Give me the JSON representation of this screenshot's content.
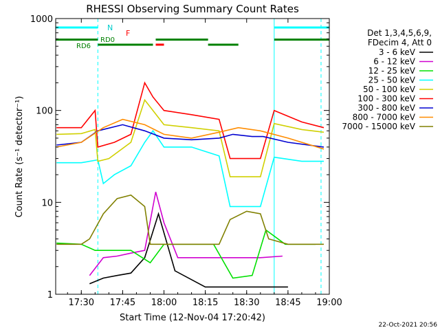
{
  "chart_data": {
    "type": "line",
    "title": "RHESSI Observing Summary Count Rates",
    "xlabel": "Start Time (12-Nov-04 17:20:42)",
    "ylabel": "Count Rate (s⁻¹ detector⁻¹)",
    "y_scale": "log",
    "ylim": [
      1,
      1000
    ],
    "xlim": [
      "17:20:42",
      "19:00:00"
    ],
    "x_ticks": [
      "17:30",
      "17:45",
      "18:00",
      "18:15",
      "18:30",
      "18:45",
      "19:00"
    ],
    "y_ticks": [
      "1",
      "10",
      "100",
      "1000"
    ],
    "legend_header": [
      "Det 1,3,4,5,6,9,",
      "FDecim 4, Att 0"
    ],
    "legend_position": "right",
    "timestamp": "22-Oct-2021 20:56",
    "flag_labels": {
      "night": "N",
      "flare": "F",
      "rd0": "RD0",
      "rd6": "RD6"
    },
    "series": [
      {
        "name": "3 - 6 keV",
        "color": "#000000",
        "x": [
          "17:33",
          "17:38",
          "17:43",
          "17:48",
          "17:53",
          "17:58",
          "18:04",
          "18:15",
          "18:25",
          "18:35",
          "18:45"
        ],
        "y": [
          1.3,
          1.5,
          1.6,
          1.7,
          2.5,
          7.5,
          1.8,
          1.2,
          1.2,
          1.2,
          1.2
        ]
      },
      {
        "name": "6 - 12 keV",
        "color": "#d000d0",
        "x": [
          "17:33",
          "17:38",
          "17:43",
          "17:48",
          "17:53",
          "17:57",
          "18:00",
          "18:05",
          "18:15",
          "18:25",
          "18:35",
          "18:43"
        ],
        "y": [
          1.6,
          2.5,
          2.6,
          2.8,
          3.0,
          13,
          6,
          2.5,
          2.5,
          2.5,
          2.5,
          2.6
        ]
      },
      {
        "name": "12 - 25 keV",
        "color": "#00e000",
        "x": [
          "17:21",
          "17:30",
          "17:35",
          "17:40",
          "17:48",
          "17:55",
          "18:00",
          "18:10",
          "18:18",
          "18:25",
          "18:32",
          "18:37",
          "18:44",
          "18:55"
        ],
        "y": [
          3.6,
          3.5,
          3.0,
          3.0,
          3.0,
          2.2,
          3.5,
          3.5,
          3.5,
          1.5,
          1.6,
          5.0,
          3.5,
          3.5
        ]
      },
      {
        "name": "25 - 50 keV",
        "color": "#00ffff",
        "x": [
          "17:21",
          "17:30",
          "17:36",
          "17:38",
          "17:42",
          "17:48",
          "17:53",
          "17:56",
          "18:00",
          "18:10",
          "18:20",
          "18:24",
          "18:35",
          "18:40",
          "18:50",
          "18:58"
        ],
        "y": [
          27,
          27,
          29,
          16,
          20,
          25,
          45,
          60,
          40,
          40,
          32,
          9,
          9,
          31,
          28,
          28
        ]
      },
      {
        "name": "50 - 100 keV",
        "color": "#d0d000",
        "x": [
          "17:21",
          "17:30",
          "17:35",
          "17:36",
          "17:40",
          "17:48",
          "17:53",
          "17:56",
          "18:00",
          "18:10",
          "18:20",
          "18:24",
          "18:35",
          "18:40",
          "18:50",
          "18:58"
        ],
        "y": [
          55,
          56,
          62,
          28,
          30,
          45,
          130,
          100,
          70,
          65,
          60,
          19,
          19,
          72,
          62,
          58
        ]
      },
      {
        "name": "100 - 300 keV",
        "color": "#ff0000",
        "x": [
          "17:21",
          "17:30",
          "17:35",
          "17:36",
          "17:42",
          "17:48",
          "17:53",
          "17:56",
          "18:00",
          "18:10",
          "18:20",
          "18:24",
          "18:35",
          "18:40",
          "18:50",
          "18:58"
        ],
        "y": [
          65,
          65,
          100,
          40,
          45,
          55,
          200,
          140,
          100,
          90,
          80,
          30,
          30,
          100,
          75,
          65
        ]
      },
      {
        "name": "300 - 800 keV",
        "color": "#0000d0",
        "x": [
          "17:21",
          "17:30",
          "17:36",
          "17:45",
          "17:53",
          "18:00",
          "18:10",
          "18:20",
          "18:25",
          "18:32",
          "18:36",
          "18:45",
          "18:58"
        ],
        "y": [
          42,
          45,
          60,
          70,
          60,
          50,
          48,
          50,
          55,
          52,
          52,
          45,
          40
        ]
      },
      {
        "name": "800 - 7000 keV",
        "color": "#ff8c00",
        "x": [
          "17:21",
          "17:30",
          "17:38",
          "17:45",
          "17:53",
          "18:00",
          "18:10",
          "18:20",
          "18:27",
          "18:35",
          "18:45",
          "18:58"
        ],
        "y": [
          40,
          45,
          65,
          80,
          70,
          55,
          50,
          58,
          65,
          60,
          50,
          38
        ]
      },
      {
        "name": "7000 - 15000 keV",
        "color": "#808000",
        "x": [
          "17:21",
          "17:30",
          "17:33",
          "17:38",
          "17:43",
          "17:48",
          "17:53",
          "17:55",
          "18:00",
          "18:20",
          "18:24",
          "18:30",
          "18:35",
          "18:38",
          "18:45",
          "18:58"
        ],
        "y": [
          3.5,
          3.5,
          4.0,
          7.5,
          11,
          12,
          9,
          3.5,
          3.5,
          3.5,
          6.5,
          8,
          7.5,
          4.0,
          3.5,
          3.5
        ]
      }
    ],
    "flags": [
      {
        "name": "night",
        "label": "N",
        "color": "#00ffff",
        "y": 800,
        "segments": [
          [
            "17:20:42",
            "17:36"
          ],
          [
            "18:40",
            "19:00"
          ]
        ]
      },
      {
        "name": "flare",
        "label": "F",
        "color": "#ff0000",
        "y": 520,
        "segments": [
          [
            "17:57",
            "18:00"
          ]
        ]
      },
      {
        "name": "rd0",
        "label": "RD0",
        "color": "#008000",
        "y": 590,
        "segments": [
          [
            "17:20:42",
            "17:36"
          ],
          [
            "17:57",
            "18:16"
          ],
          [
            "18:40",
            "19:00"
          ]
        ]
      },
      {
        "name": "rd6",
        "label": "RD6",
        "color": "#008000",
        "y": 520,
        "segments": [
          [
            "17:36",
            "17:56"
          ],
          [
            "18:16",
            "18:27"
          ]
        ]
      }
    ],
    "night_boundaries": [
      {
        "time": "17:20:42",
        "style": "solid"
      },
      {
        "time": "17:36",
        "style": "dashed"
      },
      {
        "time": "18:40",
        "style": "solid"
      },
      {
        "time": "18:57",
        "style": "dashed"
      }
    ]
  }
}
